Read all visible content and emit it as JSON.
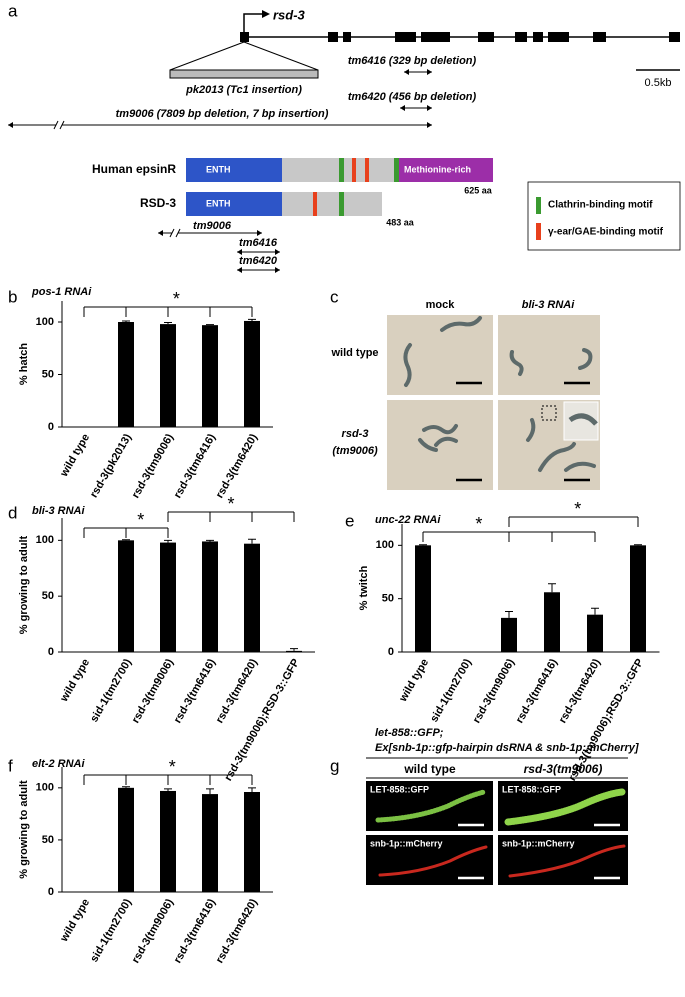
{
  "panel_labels": [
    "a",
    "b",
    "c",
    "d",
    "e",
    "f",
    "g"
  ],
  "gene_diagram": {
    "gene": "rsd-3",
    "alleles": [
      "pk2013 (Tc1 insertion)",
      "tm6416 (329 bp deletion)",
      "tm6420 (456 bp deletion)",
      "tm9006 (7809 bp deletion, 7 bp insertion)"
    ],
    "scale_bar": "0.5kb"
  },
  "protein_diagram": {
    "proteins": [
      {
        "name": "Human epsinR",
        "domains": [
          "ENTH",
          "Methionine-rich"
        ],
        "length": "625 aa"
      },
      {
        "name": "RSD-3",
        "domains": [
          "ENTH"
        ],
        "length": "483 aa"
      }
    ],
    "alleles": [
      "tm9006",
      "tm6416",
      "tm6420"
    ],
    "legend": [
      "Clathrin-binding motif",
      "γ-ear/GAE-binding motif"
    ]
  },
  "chart_data": [
    {
      "type": "bar",
      "title": "pos-1 RNAi",
      "ylabel": "% hatch",
      "categories": [
        "wild type",
        "rsd-3(pk2013)",
        "rsd-3(tm9006)",
        "rsd-3(tm6416)",
        "rsd-3(tm6420)"
      ],
      "values": [
        0,
        100,
        98,
        97,
        101
      ],
      "errors": [
        null,
        1,
        1.5,
        0.5,
        1.5
      ],
      "color": "#000000",
      "ylim": [
        0,
        120
      ],
      "yticks": [
        0,
        50,
        100
      ],
      "annotations": [
        "*"
      ]
    },
    {
      "type": "bar",
      "title": "bli-3 RNAi",
      "ylabel": "% growing to adult",
      "categories": [
        "wild type",
        "sid-1(tm2700)",
        "rsd-3(tm9006)",
        "rsd-3(tm6416)",
        "rsd-3(tm6420)",
        "rsd-3(tm9006);RSD-3::GFP"
      ],
      "values": [
        0,
        100,
        98,
        99,
        97,
        1
      ],
      "errors": [
        null,
        0.5,
        2,
        1,
        4,
        2
      ],
      "color": "#000000",
      "ylim": [
        0,
        120
      ],
      "yticks": [
        0,
        50,
        100
      ],
      "annotations": [
        "*",
        "*"
      ]
    },
    {
      "type": "bar",
      "title": "unc-22 RNAi",
      "ylabel": "% twitch",
      "categories": [
        "wild type",
        "sid-1(tm2700)",
        "rsd-3(tm9006)",
        "rsd-3(tm6416)",
        "rsd-3(tm6420)",
        "rsd-3(tm9006);RSD-3::GFP"
      ],
      "values": [
        100,
        0,
        32,
        56,
        35,
        100
      ],
      "errors": [
        0.5,
        null,
        6,
        8,
        6,
        0.5
      ],
      "color": "#000000",
      "ylim": [
        0,
        120
      ],
      "yticks": [
        0,
        50,
        100
      ],
      "annotations": [
        "*",
        "*"
      ]
    },
    {
      "type": "bar",
      "title": "elt-2 RNAi",
      "ylabel": "% growing to adult",
      "categories": [
        "wild type",
        "sid-1(tm2700)",
        "rsd-3(tm9006)",
        "rsd-3(tm6416)",
        "rsd-3(tm6420)"
      ],
      "values": [
        0,
        100,
        97,
        94,
        96
      ],
      "errors": [
        null,
        1,
        2,
        5,
        4
      ],
      "color": "#000000",
      "ylim": [
        0,
        120
      ],
      "yticks": [
        0,
        50,
        100
      ],
      "annotations": [
        "*"
      ]
    }
  ],
  "panel_c": {
    "columns": [
      "mock",
      "bli-3 RNAi"
    ],
    "rows": [
      [
        "wild type"
      ],
      [
        "rsd-3",
        "(tm9006)"
      ]
    ]
  },
  "panel_g": {
    "title": [
      "let-858::GFP;",
      "Ex[snb-1p::gfp-hairpin dsRNA & snb-1p::mCherry]"
    ],
    "columns": [
      "wild type",
      "rsd-3(tm9006)"
    ],
    "channels": [
      "LET-858::GFP",
      "snb-1p::mCherry"
    ]
  }
}
